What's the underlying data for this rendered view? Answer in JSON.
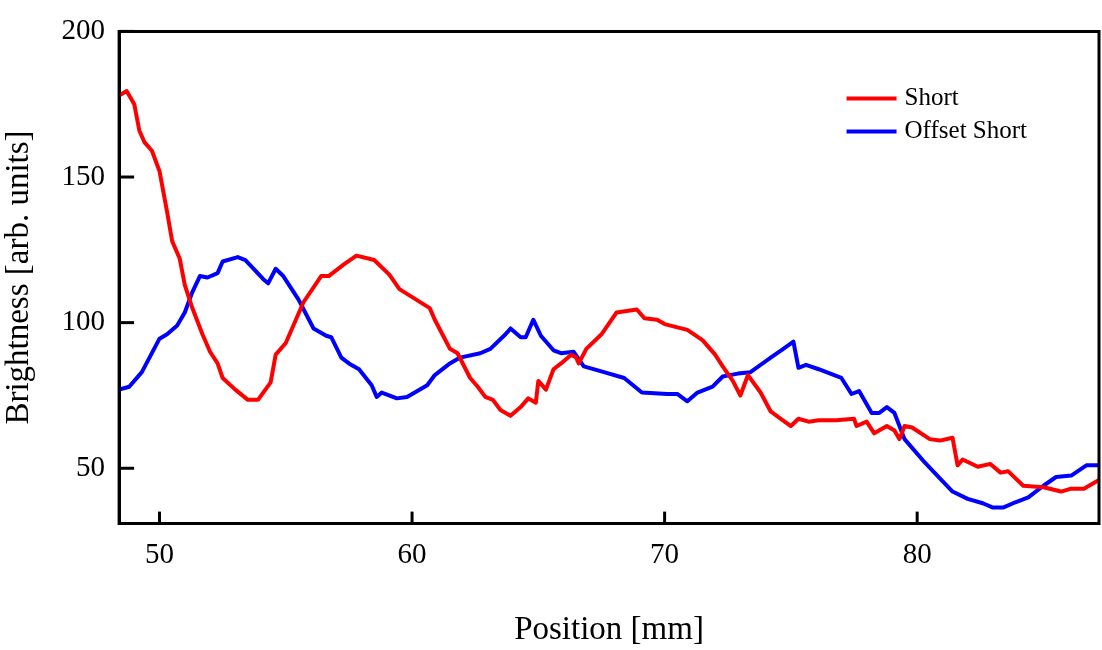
{
  "chart_data": {
    "type": "line",
    "xlabel": "Position [mm]",
    "ylabel": "Brightness [arb. units]",
    "xlim": [
      48.4,
      87.2
    ],
    "ylim": [
      31,
      200
    ],
    "xticks": [
      50,
      60,
      70,
      80
    ],
    "yticks": [
      50,
      100,
      150,
      200
    ],
    "grid": false,
    "legend": "top right",
    "marker": "none",
    "line_style": "solid",
    "series": [
      {
        "name": "Short",
        "color": "#ff0000",
        "x": [
          48.4,
          48.7,
          49.0,
          49.2,
          49.4,
          49.7,
          50.0,
          50.3,
          50.5,
          50.8,
          51.0,
          51.3,
          51.7,
          52.0,
          52.3,
          52.5,
          53.0,
          53.5,
          53.9,
          54.4,
          54.6,
          55.0,
          55.7,
          56.4,
          56.7,
          57.3,
          57.8,
          58.5,
          59.1,
          59.5,
          60.7,
          60.9,
          61.2,
          61.5,
          61.8,
          62.3,
          62.6,
          62.9,
          63.2,
          63.5,
          63.9,
          64.3,
          64.6,
          64.9,
          65.0,
          65.3,
          65.6,
          65.9,
          66.3,
          66.5,
          66.6,
          66.9,
          67.5,
          68.1,
          68.9,
          69.2,
          69.7,
          70.0,
          70.9,
          71.5,
          72.0,
          72.3,
          72.7,
          73.0,
          73.3,
          73.8,
          74.2,
          74.6,
          75.0,
          75.3,
          75.7,
          76.1,
          76.8,
          77.5,
          77.6,
          78.0,
          78.3,
          78.8,
          79.1,
          79.3,
          79.5,
          79.8,
          80.5,
          80.9,
          81.4,
          81.6,
          81.8,
          82.4,
          82.9,
          83.3,
          83.6,
          84.2,
          85.0,
          85.7,
          86.1,
          86.6,
          87.2
        ],
        "values": [
          178,
          179.5,
          175,
          166,
          162,
          159,
          152,
          138,
          128,
          122,
          113,
          105,
          96,
          90,
          86,
          81,
          77,
          73.5,
          73.5,
          79.5,
          89,
          93,
          107,
          116,
          116,
          120,
          123,
          121.5,
          116.5,
          111.5,
          105,
          101,
          96,
          91,
          89.5,
          81,
          78,
          74.5,
          73.5,
          70,
          68,
          71,
          74,
          72.5,
          80,
          77,
          84,
          86,
          89,
          88,
          86,
          91,
          96,
          103.5,
          104.5,
          101.5,
          101,
          99.5,
          97.5,
          94,
          89,
          85,
          80,
          75,
          82,
          76,
          69.5,
          67,
          64.5,
          67,
          66,
          66.5,
          66.5,
          67,
          64.5,
          66,
          62,
          64.5,
          63,
          60,
          64.5,
          64,
          60,
          59.5,
          60.5,
          51,
          53,
          50.5,
          51.5,
          48.5,
          49,
          44,
          43.5,
          42,
          43,
          43,
          46
        ]
      },
      {
        "name": "Offset Short",
        "color": "#0000ff",
        "x": [
          48.4,
          48.8,
          49.3,
          50.0,
          50.3,
          50.7,
          51.0,
          51.3,
          51.6,
          51.9,
          52.3,
          52.5,
          53.1,
          53.4,
          54.1,
          54.3,
          54.6,
          54.9,
          55.5,
          56.1,
          56.6,
          56.8,
          57.2,
          57.5,
          57.9,
          58.4,
          58.6,
          58.8,
          59.4,
          59.8,
          60.6,
          60.9,
          61.5,
          61.9,
          62.7,
          63.1,
          63.7,
          63.9,
          64.3,
          64.5,
          64.8,
          65.1,
          65.6,
          65.9,
          66.4,
          66.8,
          67.6,
          68.4,
          69.1,
          70.1,
          70.5,
          70.9,
          71.3,
          71.9,
          72.3,
          72.9,
          73.4,
          74.2,
          74.7,
          75.1,
          75.3,
          75.6,
          76.1,
          77.0,
          77.4,
          77.7,
          78.2,
          78.5,
          78.8,
          79.1,
          79.5,
          80.3,
          80.9,
          81.4,
          82.0,
          82.6,
          83.0,
          83.4,
          83.8,
          84.4,
          85.0,
          85.5,
          86.1,
          86.7,
          87.2
        ],
        "values": [
          77,
          78,
          83,
          94.5,
          96,
          99,
          103.5,
          110.5,
          116,
          115.5,
          117,
          121,
          122.5,
          121.5,
          115,
          113.5,
          118.5,
          116,
          108,
          98,
          95.5,
          95,
          88,
          86,
          84,
          78.5,
          74.5,
          76,
          74,
          74.5,
          78.5,
          82,
          86,
          88,
          89.5,
          91,
          96,
          98,
          95,
          95,
          101,
          95.5,
          90.5,
          89.5,
          90,
          85,
          83,
          81,
          76,
          75.5,
          75.5,
          73,
          76,
          78,
          81.5,
          82.5,
          83,
          88,
          91,
          93.5,
          84.5,
          85.5,
          84,
          81,
          75.5,
          76.5,
          69,
          69,
          71,
          69,
          60,
          52,
          46.5,
          42,
          39.5,
          38,
          36.5,
          36.5,
          38,
          40,
          44,
          47,
          47.5,
          51,
          51
        ]
      }
    ]
  }
}
